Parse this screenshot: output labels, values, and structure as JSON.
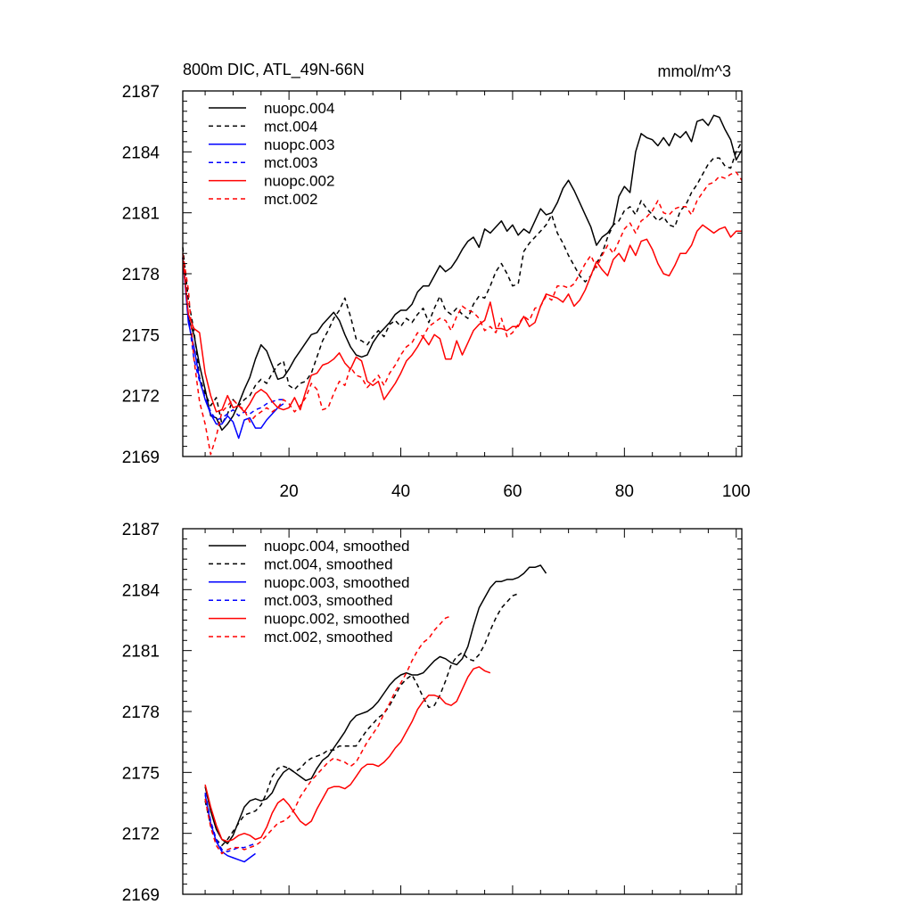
{
  "figure": {
    "title_left": "800m DIC, ATL_49N-66N",
    "title_right": "mmol/m^3"
  },
  "chart_data": [
    {
      "type": "line",
      "title": "800m DIC, ATL_49N-66N",
      "units": "mmol/m^3",
      "xlim": [
        1,
        101
      ],
      "ylim": [
        2169,
        2187
      ],
      "xticks": [
        20,
        40,
        60,
        80,
        100
      ],
      "yticks": [
        2169,
        2172,
        2175,
        2178,
        2181,
        2184,
        2187
      ],
      "show_x_tick_labels": true,
      "legend_position": "top-left",
      "series": [
        {
          "name": "nuopc.004",
          "color": "#000000",
          "dash": "solid",
          "x_start": 1,
          "values": [
            2178.8,
            2175.8,
            2175.0,
            2173.5,
            2172.3,
            2171.0,
            2170.9,
            2170.3,
            2170.6,
            2171.0,
            2171.6,
            2172.3,
            2172.9,
            2173.8,
            2174.5,
            2174.2,
            2173.5,
            2172.8,
            2172.9,
            2173.3,
            2173.8,
            2174.2,
            2174.6,
            2175.0,
            2175.1,
            2175.5,
            2175.8,
            2176.1,
            2175.7,
            2175.0,
            2174.4,
            2174.0,
            2173.9,
            2174.0,
            2174.6,
            2175.0,
            2175.3,
            2175.6,
            2176.0,
            2176.2,
            2176.2,
            2176.5,
            2177.1,
            2177.4,
            2177.4,
            2177.9,
            2178.4,
            2178.1,
            2178.3,
            2178.7,
            2179.2,
            2179.6,
            2179.8,
            2179.3,
            2180.2,
            2180.0,
            2180.3,
            2180.6,
            2180.1,
            2180.4,
            2179.9,
            2180.2,
            2180.0,
            2180.6,
            2181.2,
            2180.9,
            2181.0,
            2181.5,
            2182.2,
            2182.6,
            2182.1,
            2181.5,
            2180.9,
            2180.3,
            2179.4,
            2179.8,
            2180.0,
            2180.4,
            2181.8,
            2182.3,
            2182.0,
            2184.0,
            2184.9,
            2184.7,
            2184.6,
            2184.3,
            2184.7,
            2184.3,
            2184.9,
            2184.7,
            2185.0,
            2184.5,
            2185.5,
            2185.6,
            2185.3,
            2185.8,
            2185.7,
            2185.1,
            2184.6,
            2183.6,
            2184.1
          ]
        },
        {
          "name": "mct.004",
          "color": "#000000",
          "dash": "dashed",
          "x_start": 1,
          "values": [
            2179.3,
            2176.7,
            2175.2,
            2172.9,
            2172.1,
            2171.5,
            2171.9,
            2170.6,
            2171.1,
            2171.8,
            2171.5,
            2171.8,
            2172.0,
            2172.5,
            2172.8,
            2172.6,
            2173.1,
            2173.5,
            2173.7,
            2172.5,
            2172.3,
            2172.6,
            2172.7,
            2173.1,
            2173.9,
            2174.7,
            2175.2,
            2175.8,
            2176.2,
            2176.8,
            2175.9,
            2174.8,
            2174.7,
            2174.5,
            2174.9,
            2175.2,
            2174.9,
            2175.5,
            2175.7,
            2175.4,
            2175.8,
            2175.6,
            2176.0,
            2176.3,
            2175.6,
            2176.3,
            2176.9,
            2176.2,
            2176.0,
            2176.3,
            2176.0,
            2175.8,
            2176.5,
            2176.9,
            2176.8,
            2177.4,
            2178.1,
            2178.5,
            2178.0,
            2177.4,
            2177.5,
            2179.1,
            2179.5,
            2179.8,
            2180.1,
            2180.4,
            2180.9,
            2180.0,
            2179.5,
            2178.9,
            2178.4,
            2177.9,
            2177.6,
            2177.9,
            2178.5,
            2179.0,
            2179.8,
            2180.4,
            2180.6,
            2181.1,
            2181.3,
            2180.9,
            2181.6,
            2181.2,
            2180.9,
            2180.6,
            2180.8,
            2180.4,
            2180.3,
            2181.1,
            2181.4,
            2182.0,
            2182.4,
            2182.9,
            2183.4,
            2183.7,
            2183.7,
            2183.3,
            2183.2,
            2184.0,
            2184.5
          ]
        },
        {
          "name": "nuopc.003",
          "color": "#0000ff",
          "dash": "solid",
          "x_start": 1,
          "values": [
            2178.8,
            2175.6,
            2174.4,
            2172.8,
            2171.8,
            2171.1,
            2170.6,
            2170.6,
            2171.0,
            2170.7,
            2169.9,
            2170.8,
            2170.9,
            2170.4,
            2170.4,
            2170.8,
            2171.1,
            2171.4,
            2171.6
          ]
        },
        {
          "name": "mct.003",
          "color": "#0000ff",
          "dash": "dashed",
          "x_start": 1,
          "values": [
            2178.8,
            2175.9,
            2173.8,
            2172.7,
            2171.9,
            2171.2,
            2170.8,
            2170.9,
            2171.1,
            2171.3,
            2171.0,
            2171.2,
            2171.1,
            2171.3,
            2171.4,
            2171.6,
            2171.7,
            2171.8,
            2171.8
          ]
        },
        {
          "name": "nuopc.002",
          "color": "#ff0000",
          "dash": "solid",
          "x_start": 1,
          "values": [
            2178.8,
            2176.0,
            2175.3,
            2175.1,
            2173.1,
            2172.0,
            2171.2,
            2171.3,
            2172.0,
            2171.4,
            2171.5,
            2171.2,
            2171.6,
            2172.1,
            2172.3,
            2172.1,
            2171.7,
            2171.4,
            2171.3,
            2171.4,
            2171.9,
            2171.3,
            2172.2,
            2173.0,
            2173.1,
            2173.5,
            2173.6,
            2173.8,
            2174.1,
            2173.6,
            2173.3,
            2173.9,
            2173.7,
            2172.7,
            2172.5,
            2172.7,
            2171.8,
            2172.2,
            2172.6,
            2173.1,
            2173.7,
            2174.0,
            2174.4,
            2174.9,
            2174.5,
            2175.0,
            2174.8,
            2173.8,
            2173.8,
            2174.7,
            2174.0,
            2174.6,
            2175.2,
            2175.5,
            2175.7,
            2176.6,
            2175.3,
            2175.3,
            2175.2,
            2175.4,
            2175.4,
            2175.9,
            2175.4,
            2175.6,
            2176.4,
            2177.0,
            2176.9,
            2176.8,
            2176.6,
            2177.0,
            2176.4,
            2176.7,
            2177.2,
            2177.9,
            2178.6,
            2178.2,
            2177.9,
            2178.7,
            2179.0,
            2178.6,
            2179.4,
            2178.9,
            2179.6,
            2179.7,
            2179.2,
            2178.5,
            2178.0,
            2177.9,
            2178.4,
            2179.0,
            2179.0,
            2179.4,
            2180.1,
            2180.4,
            2180.2,
            2180.0,
            2180.2,
            2180.3,
            2179.8,
            2180.1,
            2180.1
          ]
        },
        {
          "name": "mct.002",
          "color": "#ff0000",
          "dash": "dashed",
          "x_start": 1,
          "values": [
            2179.0,
            2177.2,
            2173.8,
            2171.7,
            2170.6,
            2169.1,
            2170.0,
            2171.2,
            2171.5,
            2171.8,
            2171.5,
            2171.3,
            2170.7,
            2171.0,
            2171.2,
            2171.4,
            2171.2,
            2171.4,
            2171.8,
            2171.6,
            2171.2,
            2171.5,
            2171.9,
            2172.6,
            2172.3,
            2171.3,
            2171.4,
            2172.1,
            2172.7,
            2172.5,
            2173.4,
            2173.0,
            2172.9,
            2172.4,
            2172.7,
            2173.0,
            2172.5,
            2173.1,
            2173.5,
            2174.0,
            2174.4,
            2174.6,
            2175.1,
            2174.9,
            2175.4,
            2175.6,
            2175.8,
            2175.7,
            2175.2,
            2175.9,
            2176.4,
            2176.2,
            2176.1,
            2175.8,
            2175.2,
            2175.4,
            2175.1,
            2175.8,
            2174.9,
            2175.1,
            2175.5,
            2175.9,
            2175.7,
            2176.3,
            2176.4,
            2176.9,
            2176.7,
            2177.4,
            2177.4,
            2177.3,
            2177.5,
            2178.0,
            2178.5,
            2178.9,
            2178.3,
            2178.9,
            2179.4,
            2179.0,
            2179.6,
            2180.2,
            2180.5,
            2180.0,
            2180.6,
            2180.8,
            2181.1,
            2181.6,
            2181.0,
            2180.9,
            2181.2,
            2181.3,
            2181.3,
            2180.9,
            2181.6,
            2182.0,
            2182.4,
            2182.5,
            2182.8,
            2182.7,
            2182.9,
            2183.0,
            2182.6
          ]
        }
      ]
    },
    {
      "type": "line",
      "title": "",
      "xlim": [
        1,
        101
      ],
      "ylim": [
        2169,
        2187
      ],
      "xticks": [
        20,
        40,
        60,
        80,
        100
      ],
      "yticks": [
        2169,
        2172,
        2175,
        2178,
        2181,
        2184,
        2187
      ],
      "show_x_tick_labels": false,
      "legend_position": "top-left",
      "series": [
        {
          "name": "nuopc.004, smoothed",
          "color": "#000000",
          "dash": "solid",
          "x_start": 5,
          "values": [
            2174.3,
            2173.1,
            2172.2,
            2171.7,
            2171.5,
            2171.9,
            2172.6,
            2173.3,
            2173.6,
            2173.7,
            2173.6,
            2173.7,
            2174.0,
            2174.6,
            2175.0,
            2175.2,
            2175.0,
            2174.8,
            2174.6,
            2174.7,
            2175.2,
            2175.6,
            2175.8,
            2176.2,
            2176.6,
            2177.0,
            2177.5,
            2177.8,
            2177.9,
            2178.0,
            2178.2,
            2178.5,
            2178.9,
            2179.3,
            2179.6,
            2179.8,
            2179.9,
            2179.8,
            2179.8,
            2179.9,
            2180.2,
            2180.5,
            2180.7,
            2180.6,
            2180.4,
            2180.3,
            2180.6,
            2181.2,
            2182.2,
            2183.1,
            2183.6,
            2184.1,
            2184.4,
            2184.4,
            2184.5,
            2184.5,
            2184.6,
            2184.8,
            2185.1,
            2185.1,
            2185.2,
            2184.8
          ]
        },
        {
          "name": "mct.004, smoothed",
          "color": "#000000",
          "dash": "dashed",
          "x_start": 5,
          "values": [
            2173.6,
            2172.4,
            2171.7,
            2171.4,
            2171.7,
            2172.1,
            2172.5,
            2172.9,
            2173.0,
            2173.1,
            2173.4,
            2174.0,
            2174.8,
            2175.2,
            2175.3,
            2175.2,
            2175.0,
            2175.2,
            2175.5,
            2175.7,
            2175.8,
            2175.9,
            2176.1,
            2176.1,
            2176.3,
            2176.3,
            2176.3,
            2176.3,
            2176.7,
            2177.1,
            2177.4,
            2177.7,
            2177.9,
            2178.3,
            2178.8,
            2179.3,
            2179.6,
            2179.8,
            2179.3,
            2178.7,
            2178.2,
            2178.3,
            2178.8,
            2179.5,
            2180.3,
            2180.7,
            2180.9,
            2180.6,
            2180.5,
            2180.8,
            2181.3,
            2182.0,
            2182.6,
            2183.1,
            2183.4,
            2183.7,
            2183.8
          ]
        },
        {
          "name": "nuopc.003, smoothed",
          "color": "#0000ff",
          "dash": "solid",
          "x_start": 5,
          "values": [
            2173.9,
            2172.5,
            2171.6,
            2171.1,
            2170.9,
            2170.8,
            2170.7,
            2170.6,
            2170.8,
            2171.0
          ]
        },
        {
          "name": "mct.003, smoothed",
          "color": "#0000ff",
          "dash": "dashed",
          "x_start": 5,
          "values": [
            2174.0,
            2172.6,
            2171.7,
            2171.2,
            2171.1,
            2171.2,
            2171.3,
            2171.3,
            2171.4,
            2171.5
          ]
        },
        {
          "name": "nuopc.002, smoothed",
          "color": "#ff0000",
          "dash": "solid",
          "x_start": 5,
          "values": [
            2174.4,
            2173.3,
            2172.4,
            2171.7,
            2171.6,
            2171.7,
            2171.9,
            2172.0,
            2171.9,
            2171.7,
            2171.8,
            2172.3,
            2173.0,
            2173.5,
            2173.7,
            2173.4,
            2173.0,
            2172.6,
            2172.4,
            2172.6,
            2173.2,
            2173.7,
            2174.2,
            2174.3,
            2174.3,
            2174.2,
            2174.4,
            2174.8,
            2175.2,
            2175.4,
            2175.4,
            2175.3,
            2175.5,
            2175.8,
            2176.2,
            2176.5,
            2177.0,
            2177.5,
            2178.1,
            2178.5,
            2178.8,
            2178.8,
            2178.7,
            2178.4,
            2178.3,
            2178.5,
            2179.1,
            2179.7,
            2180.1,
            2180.2,
            2180.0,
            2179.9
          ]
        },
        {
          "name": "mct.002, smoothed",
          "color": "#ff0000",
          "dash": "dashed",
          "x_start": 5,
          "values": [
            2173.7,
            2172.3,
            2171.4,
            2171.0,
            2171.2,
            2171.3,
            2171.3,
            2171.2,
            2171.3,
            2171.4,
            2171.6,
            2171.9,
            2172.2,
            2172.5,
            2172.6,
            2172.8,
            2173.2,
            2173.8,
            2174.2,
            2174.6,
            2174.9,
            2175.2,
            2175.5,
            2175.7,
            2175.6,
            2175.5,
            2175.3,
            2175.5,
            2176.0,
            2176.5,
            2176.9,
            2177.3,
            2177.9,
            2178.4,
            2179.0,
            2179.4,
            2179.9,
            2180.5,
            2181.0,
            2181.4,
            2181.6,
            2182.0,
            2182.3,
            2182.6,
            2182.7
          ]
        }
      ]
    }
  ]
}
